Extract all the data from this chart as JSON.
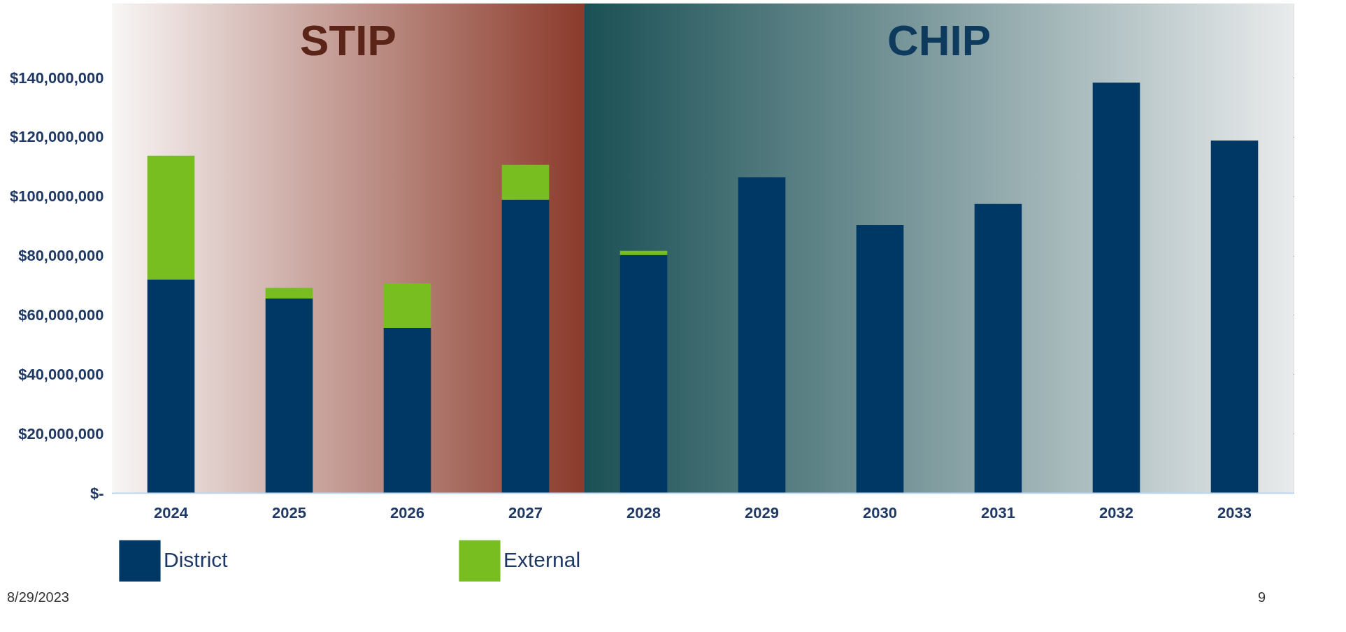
{
  "chart_data": {
    "type": "bar",
    "stacked": true,
    "categories": [
      "2024",
      "2025",
      "2026",
      "2027",
      "2028",
      "2029",
      "2030",
      "2031",
      "2032",
      "2033"
    ],
    "series": [
      {
        "name": "District",
        "color": "#003865",
        "values": [
          72000000,
          65500000,
          55600000,
          98800000,
          80200000,
          106400000,
          90300000,
          97400000,
          138300000,
          118800000
        ]
      },
      {
        "name": "External",
        "color": "#78be20",
        "values": [
          41700000,
          3600000,
          15000000,
          11800000,
          1400000,
          null,
          null,
          null,
          null,
          null
        ]
      }
    ],
    "ylim": [
      0,
      165000000
    ],
    "yticks": [
      {
        "value": 0,
        "label": "$-"
      },
      {
        "value": 20000000,
        "label": "$20,000,000"
      },
      {
        "value": 40000000,
        "label": "$40,000,000"
      },
      {
        "value": 60000000,
        "label": "$60,000,000"
      },
      {
        "value": 80000000,
        "label": "$80,000,000"
      },
      {
        "value": 100000000,
        "label": "$100,000,000"
      },
      {
        "value": 120000000,
        "label": "$120,000,000"
      },
      {
        "value": 140000000,
        "label": "$140,000,000"
      }
    ],
    "grid": "y",
    "legend": "bottom",
    "bands": [
      {
        "axis": "x",
        "from": "2024",
        "to": "2027",
        "label": "STIP",
        "color": "#8b3a2a"
      },
      {
        "axis": "x",
        "from": "2028",
        "to": "2033",
        "label": "CHIP",
        "color": "#1a5055"
      }
    ],
    "annotations": [
      "8/29/2023",
      "9"
    ]
  }
}
